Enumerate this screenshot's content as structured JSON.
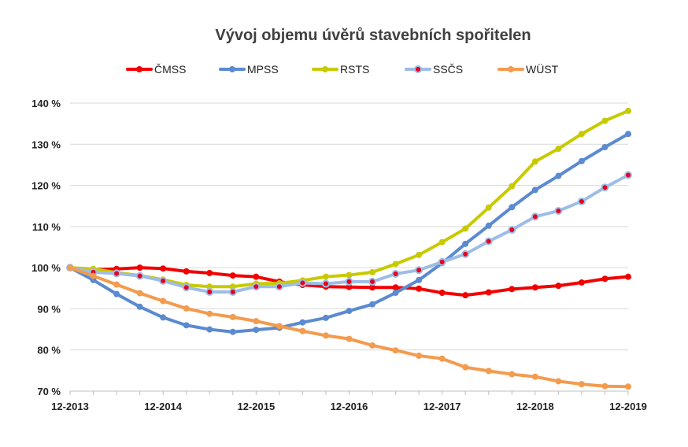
{
  "chart_data": {
    "type": "line",
    "title": "Vývoj objemu úvěrů stavebních spořitelen",
    "xlabel": "",
    "ylabel": "",
    "ylim": [
      70,
      140
    ],
    "y_ticks": [
      "70 %",
      "80 %",
      "90 %",
      "100 %",
      "110 %",
      "120 %",
      "130 %",
      "140 %"
    ],
    "y_tick_values": [
      70,
      80,
      90,
      100,
      110,
      120,
      130,
      140
    ],
    "x_ticks": [
      "12-2013",
      "12-2014",
      "12-2015",
      "12-2016",
      "12-2017",
      "12-2018",
      "12-2019"
    ],
    "x_tick_index": [
      0,
      4,
      8,
      12,
      16,
      20,
      24
    ],
    "point_count": 25,
    "grid": "horizontal",
    "legend_position": "top",
    "series": [
      {
        "name": "ČMSS",
        "color": "#f20000",
        "marker": "dot",
        "values": [
          100,
          99.5,
          99.7,
          100.0,
          99.8,
          99.1,
          98.7,
          98.1,
          97.8,
          96.6,
          95.8,
          95.4,
          95.3,
          95.2,
          95.2,
          94.9,
          93.9,
          93.3,
          94.0,
          94.8,
          95.2,
          95.6,
          96.4,
          97.3,
          97.8
        ]
      },
      {
        "name": "MPSS",
        "color": "#5b8ad0",
        "marker": "dot",
        "values": [
          100,
          97.0,
          93.6,
          90.5,
          87.9,
          86.0,
          85.0,
          84.4,
          84.9,
          85.4,
          86.7,
          87.8,
          89.5,
          91.1,
          93.9,
          97.0,
          101.1,
          105.8,
          110.2,
          114.7,
          118.9,
          122.3,
          125.9,
          129.3,
          132.5
        ]
      },
      {
        "name": "RSTS",
        "color": "#c8ca00",
        "marker": "dot",
        "values": [
          100,
          99.7,
          98.8,
          98.1,
          97.1,
          95.8,
          95.4,
          95.4,
          96.1,
          96.2,
          96.9,
          97.8,
          98.2,
          98.9,
          100.9,
          103.1,
          106.2,
          109.5,
          114.6,
          119.8,
          125.8,
          128.9,
          132.5,
          135.7,
          138.1
        ]
      },
      {
        "name": "SSČS",
        "color": "#9dbde6",
        "marker": "ring",
        "marker_fill": "#e8001c",
        "values": [
          100,
          98.9,
          98.6,
          98.0,
          96.8,
          95.2,
          94.1,
          94.1,
          95.4,
          95.4,
          96.3,
          96.1,
          96.6,
          96.6,
          98.5,
          99.4,
          101.4,
          103.3,
          106.4,
          109.2,
          112.4,
          113.8,
          116.1,
          119.5,
          122.5
        ]
      },
      {
        "name": "WÜST",
        "color": "#f39b4e",
        "marker": "dot",
        "values": [
          100,
          98.0,
          95.9,
          93.8,
          91.9,
          90.1,
          88.8,
          88.0,
          87.0,
          85.8,
          84.6,
          83.5,
          82.7,
          81.1,
          79.9,
          78.6,
          77.9,
          75.8,
          74.9,
          74.1,
          73.5,
          72.4,
          71.7,
          71.2,
          71.1
        ]
      }
    ]
  }
}
